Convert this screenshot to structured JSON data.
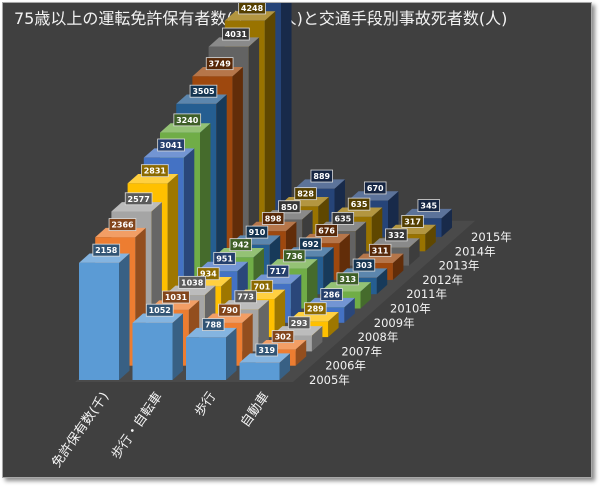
{
  "chart_data": {
    "type": "bar",
    "title": "75歳以上の運転免許保有者数(単位千人)と交通手段別事故死者数(人)",
    "categories": [
      "免許保有数(千)",
      "歩行・自転車",
      "歩行",
      "自動車"
    ],
    "x": [
      "2005年",
      "2006年",
      "2007年",
      "2008年",
      "2009年",
      "2010年",
      "2011年",
      "2012年",
      "2013年",
      "2014年",
      "2015年"
    ],
    "series": [
      {
        "name": "2005年",
        "values": [
          2158,
          1052,
          788,
          319
        ]
      },
      {
        "name": "2006年",
        "values": [
          2366,
          1031,
          790,
          302
        ]
      },
      {
        "name": "2007年",
        "values": [
          2577,
          1038,
          773,
          293
        ]
      },
      {
        "name": "2008年",
        "values": [
          2831,
          934,
          701,
          289
        ]
      },
      {
        "name": "2009年",
        "values": [
          3041,
          951,
          717,
          286
        ]
      },
      {
        "name": "2010年",
        "values": [
          3240,
          942,
          736,
          313
        ]
      },
      {
        "name": "2011年",
        "values": [
          3505,
          910,
          692,
          303
        ]
      },
      {
        "name": "2012年",
        "values": [
          3749,
          898,
          676,
          311
        ]
      },
      {
        "name": "2013年",
        "values": [
          4031,
          850,
          635,
          332
        ]
      },
      {
        "name": "2014年",
        "values": [
          4248,
          828,
          635,
          317
        ]
      },
      {
        "name": "2015年",
        "values": [
          4474,
          889,
          670,
          345
        ]
      }
    ],
    "colors": [
      "#5b9bd5",
      "#ed7d31",
      "#a5a5a5",
      "#ffc000",
      "#4472c4",
      "#70ad47",
      "#255e91",
      "#9e480e",
      "#636363",
      "#997300",
      "#264478"
    ],
    "chart_style": "3d-column",
    "legend": "none",
    "grid": false
  }
}
